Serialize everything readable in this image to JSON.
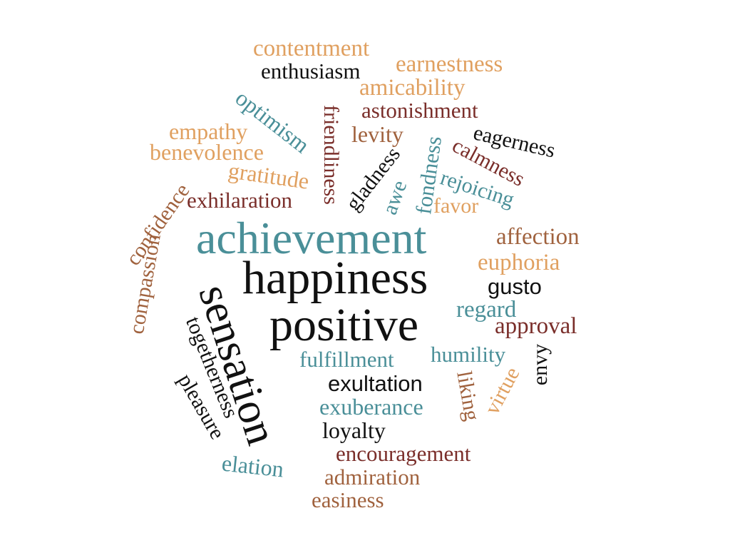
{
  "words": {
    "contentment": "contentment",
    "earnestness": "earnestness",
    "enthusiasm": "enthusiasm",
    "amicability": "amicability",
    "astonishment": "astonishment",
    "levity": "levity",
    "empathy": "empathy",
    "benevolence": "benevolence",
    "gratitude": "gratitude",
    "exhilaration": "exhilaration",
    "optimism": "optimism",
    "friendliness": "friendliness",
    "gladness": "gladness",
    "awe": "awe",
    "fondness": "fondness",
    "eagerness": "eagerness",
    "calmness": "calmness",
    "rejoicing": "rejoicing",
    "favor": "favor",
    "confidence": "confidence",
    "compassion": "compassion",
    "achievement": "achievement",
    "affection": "affection",
    "euphoria": "euphoria",
    "happiness": "happiness",
    "gusto": "gusto",
    "regard": "regard",
    "positive": "positive",
    "approval": "approval",
    "sensation": "sensation",
    "togetherness": "togetherness",
    "pleasure": "pleasure",
    "fulfillment": "fulfillment",
    "humility": "humility",
    "envy": "envy",
    "exultation": "exultation",
    "virtue": "virtue",
    "liking": "liking",
    "exuberance": "exuberance",
    "loyalty": "loyalty",
    "encouragement": "encouragement",
    "elation": "elation",
    "admiration": "admiration",
    "easiness": "easiness"
  },
  "colors": {
    "tan": "#e0a060",
    "teal": "#4a8f98",
    "maroon": "#7a2e2a",
    "brown": "#a0623e",
    "black": "#111111"
  }
}
